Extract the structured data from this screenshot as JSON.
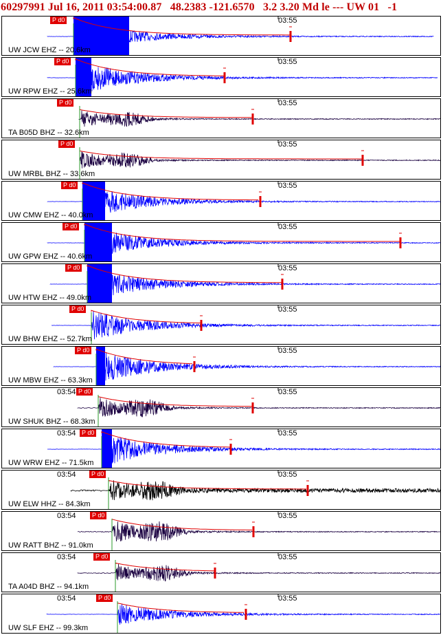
{
  "header": {
    "text": "60297991 Jul 16, 2011 03:54:00.87   48.2383 -121.6570   3.2 3.20 Md le --- UW 01   -1"
  },
  "colors": {
    "trace_blue": "#0000ff",
    "trace_dark": "#1a0040",
    "trace_black": "#000000",
    "pick": "#e00000",
    "coda": "#e00000",
    "border": "#000000"
  },
  "tick_labels": {
    "left": "03:54",
    "right": "03:55"
  },
  "panels": [
    {
      "station": "UW JCW EHZ -- 20.6km",
      "pick_label": "P d0",
      "color": "blue",
      "tick_left": ""
    },
    {
      "station": "UW RPW EHZ -- 25.6km",
      "pick_label": "P d0",
      "color": "blue",
      "tick_left": ""
    },
    {
      "station": "TA B05D BHZ -- 32.6km",
      "pick_label": "P d0",
      "color": "dark",
      "tick_left": ""
    },
    {
      "station": "UW MRBL BHZ -- 33.6km",
      "pick_label": "P d0",
      "color": "dark",
      "tick_left": ""
    },
    {
      "station": "UW CMW EHZ -- 40.0km",
      "pick_label": "P d0",
      "color": "blue",
      "tick_left": ""
    },
    {
      "station": "UW GPW EHZ -- 40.6km",
      "pick_label": "P d0",
      "color": "blue",
      "tick_left": ""
    },
    {
      "station": "UW HTW EHZ -- 49.0km",
      "pick_label": "P d0",
      "color": "blue",
      "tick_left": ""
    },
    {
      "station": "UW BHW EHZ -- 52.7km",
      "pick_label": "P d0",
      "color": "blue",
      "tick_left": ""
    },
    {
      "station": "UW MBW EHZ -- 63.3km",
      "pick_label": "P d0",
      "color": "blue",
      "tick_left": ""
    },
    {
      "station": "UW SHUK BHZ -- 68.3km",
      "pick_label": "P d0",
      "color": "dark",
      "tick_left": "03:54"
    },
    {
      "station": "UW WRW EHZ -- 71.5km",
      "pick_label": "P d0",
      "color": "blue",
      "tick_left": "03:54"
    },
    {
      "station": "UW ELW HHZ -- 84.3km",
      "pick_label": "P d0",
      "color": "black",
      "tick_left": "03:54"
    },
    {
      "station": "UW RATT BHZ -- 91.0km",
      "pick_label": "P d0",
      "color": "dark",
      "tick_left": "03:54"
    },
    {
      "station": "TA A04D BHZ -- 94.1km",
      "pick_label": "P d0",
      "color": "dark",
      "tick_left": "03:54"
    },
    {
      "station": "UW SLF EHZ -- 99.3km",
      "pick_label": "P d0",
      "color": "blue",
      "tick_left": "03:54"
    }
  ]
}
